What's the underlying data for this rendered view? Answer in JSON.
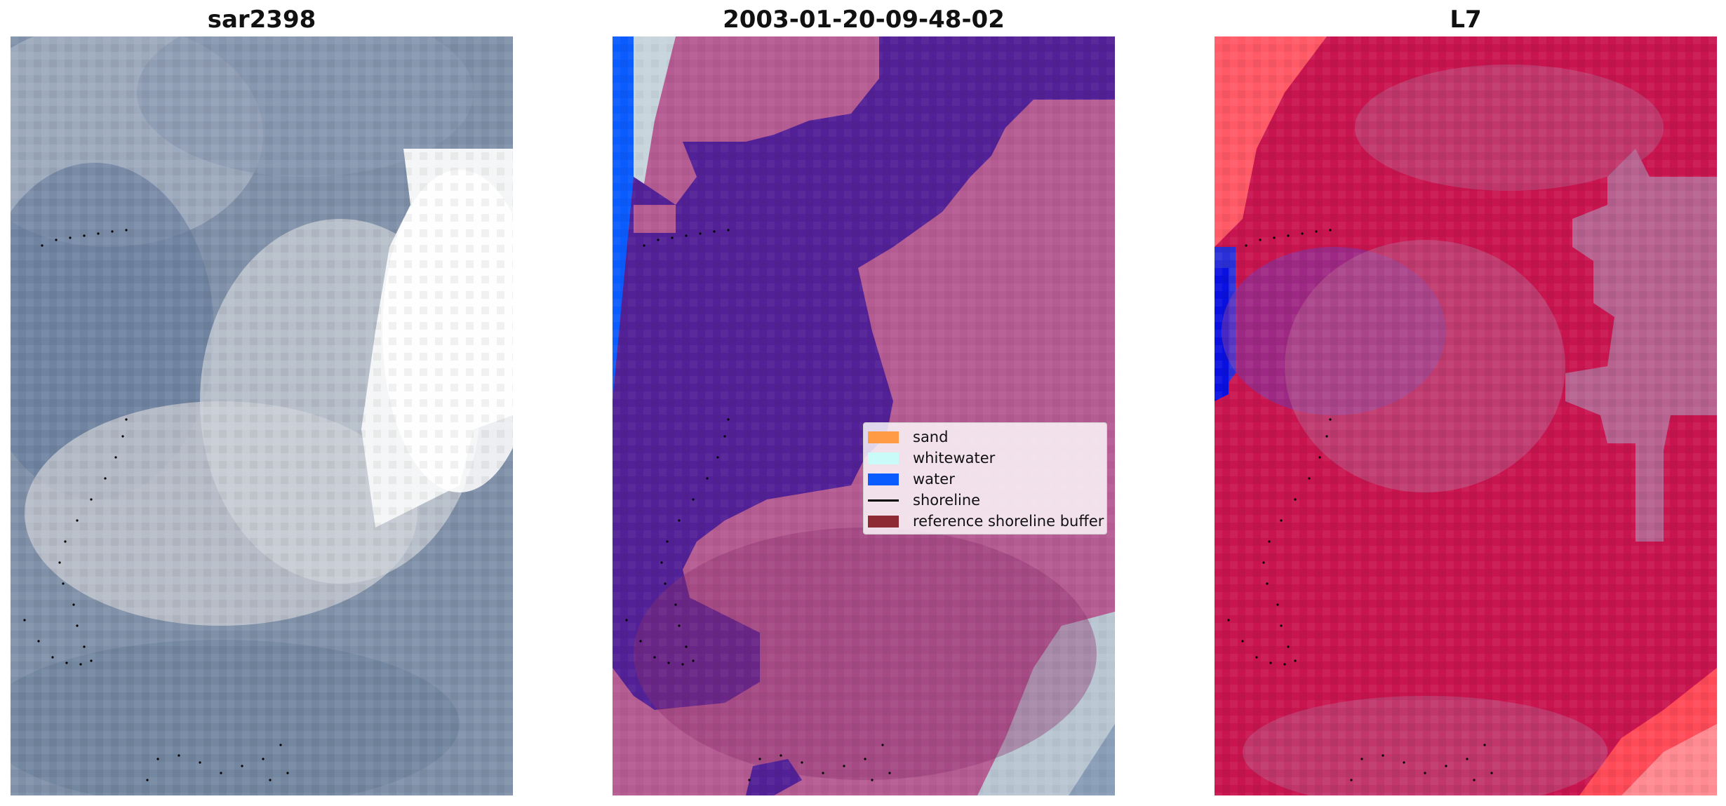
{
  "panels": [
    {
      "title": "sar2398"
    },
    {
      "title": "2003-01-20-09-48-02"
    },
    {
      "title": "L7"
    }
  ],
  "legend": {
    "items": [
      {
        "label": "sand",
        "color": "#ff9a45",
        "kind": "patch"
      },
      {
        "label": "whitewater",
        "color": "#c9fbf8",
        "kind": "patch"
      },
      {
        "label": "water",
        "color": "#0b5cff",
        "kind": "patch"
      },
      {
        "label": "shoreline",
        "color": "#000000",
        "kind": "line"
      },
      {
        "label": "reference shoreline buffer",
        "color": "#8e2a34",
        "kind": "patch"
      }
    ]
  },
  "colors": {
    "rgb_base": "#7f90a8",
    "rgb_cloud": "#f4f5f6",
    "class_sand_overlay": "#b55c93",
    "class_water_purple": "#532197",
    "class_water_blue": "#0b5cff",
    "index_red": "#c9154f",
    "index_pink": "#b7628f",
    "index_blue": "#2a2fd8"
  }
}
